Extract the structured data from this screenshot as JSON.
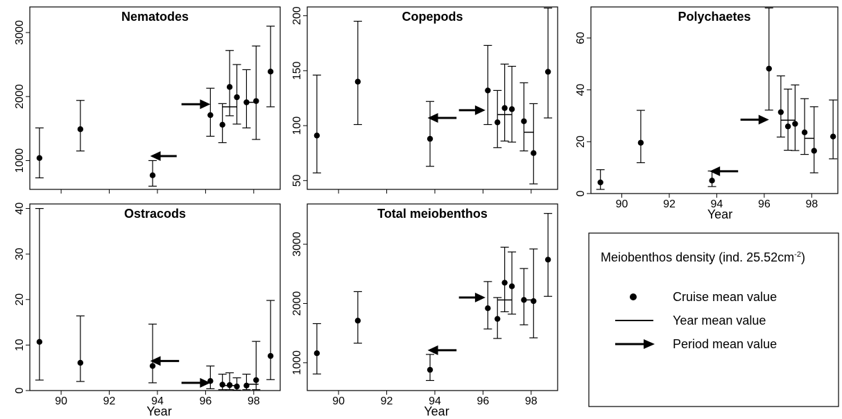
{
  "chart_data": [
    {
      "type": "scatter",
      "title": "Nematodes",
      "xlabel": "",
      "xlim": [
        1988.7,
        1999.1
      ],
      "ylim": [
        550,
        3400
      ],
      "xticks": [
        90,
        92,
        94,
        96,
        98
      ],
      "yticks": [
        1000,
        2000,
        3000
      ],
      "show_xtick_labels": false,
      "cruise_means": [
        {
          "x": 1989.1,
          "y": 1040,
          "low": 730,
          "high": 1510
        },
        {
          "x": 1990.8,
          "y": 1490,
          "low": 1150,
          "high": 1940
        },
        {
          "x": 1993.8,
          "y": 770,
          "low": 600,
          "high": 1000
        },
        {
          "x": 1996.2,
          "y": 1710,
          "low": 1380,
          "high": 2130
        },
        {
          "x": 1996.7,
          "y": 1560,
          "low": 1280,
          "high": 1890
        },
        {
          "x": 1997.0,
          "y": 2150,
          "low": 1700,
          "high": 2720
        },
        {
          "x": 1997.3,
          "y": 1990,
          "low": 1570,
          "high": 2500
        },
        {
          "x": 1997.7,
          "y": 1910,
          "low": 1510,
          "high": 2420
        },
        {
          "x": 1998.1,
          "y": 1930,
          "low": 1330,
          "high": 2790
        },
        {
          "x": 1998.7,
          "y": 2390,
          "low": 1840,
          "high": 3100
        }
      ],
      "year_means": [
        {
          "x0": 1996.7,
          "x1": 1997.3,
          "y": 1840
        },
        {
          "x0": 1997.7,
          "x1": 1998.2,
          "y": 1910
        }
      ],
      "period_means": [
        {
          "tail_x": 1994.8,
          "head_x": 1993.7,
          "y": 1070
        },
        {
          "tail_x": 1995.0,
          "head_x": 1996.2,
          "y": 1880
        }
      ]
    },
    {
      "type": "scatter",
      "title": "Copepods",
      "xlabel": "",
      "xlim": [
        1988.7,
        1999.1
      ],
      "ylim": [
        42,
        208
      ],
      "xticks": [
        90,
        92,
        94,
        96,
        98
      ],
      "yticks": [
        50,
        100,
        150,
        200
      ],
      "show_xtick_labels": false,
      "cruise_means": [
        {
          "x": 1989.1,
          "y": 91,
          "low": 57,
          "high": 146
        },
        {
          "x": 1990.8,
          "y": 140,
          "low": 101,
          "high": 195
        },
        {
          "x": 1993.8,
          "y": 88,
          "low": 63,
          "high": 122
        },
        {
          "x": 1996.2,
          "y": 132,
          "low": 101,
          "high": 173
        },
        {
          "x": 1996.6,
          "y": 103,
          "low": 80,
          "high": 132
        },
        {
          "x": 1996.9,
          "y": 116,
          "low": 86,
          "high": 156
        },
        {
          "x": 1997.2,
          "y": 115,
          "low": 85,
          "high": 154
        },
        {
          "x": 1997.7,
          "y": 104,
          "low": 77,
          "high": 139
        },
        {
          "x": 1998.1,
          "y": 75,
          "low": 47,
          "high": 120
        },
        {
          "x": 1998.7,
          "y": 149,
          "low": 107,
          "high": 207
        }
      ],
      "year_means": [
        {
          "x0": 1996.6,
          "x1": 1997.2,
          "y": 110
        },
        {
          "x0": 1997.7,
          "x1": 1998.1,
          "y": 94
        }
      ],
      "period_means": [
        {
          "tail_x": 1994.9,
          "head_x": 1993.7,
          "y": 107
        },
        {
          "tail_x": 1995.0,
          "head_x": 1996.1,
          "y": 114
        }
      ]
    },
    {
      "type": "scatter",
      "title": "Polychaetes",
      "xlabel": "Year",
      "xlim": [
        1988.7,
        1999.1
      ],
      "ylim": [
        0,
        72
      ],
      "xticks": [
        90,
        92,
        94,
        96,
        98
      ],
      "yticks": [
        0,
        20,
        40,
        60
      ],
      "show_xtick_labels": true,
      "cruise_means": [
        {
          "x": 1989.1,
          "y": 4.3,
          "low": 1.6,
          "high": 9.2
        },
        {
          "x": 1990.8,
          "y": 19.6,
          "low": 11.9,
          "high": 32.1
        },
        {
          "x": 1993.8,
          "y": 5.0,
          "low": 2.7,
          "high": 8.7
        },
        {
          "x": 1996.2,
          "y": 48.2,
          "low": 32.2,
          "high": 71.6
        },
        {
          "x": 1996.7,
          "y": 31.4,
          "low": 21.8,
          "high": 45.4
        },
        {
          "x": 1997.0,
          "y": 25.9,
          "low": 16.7,
          "high": 40.3
        },
        {
          "x": 1997.3,
          "y": 26.9,
          "low": 16.6,
          "high": 41.9
        },
        {
          "x": 1997.7,
          "y": 23.6,
          "low": 15.1,
          "high": 36.6
        },
        {
          "x": 1998.1,
          "y": 16.5,
          "low": 8.0,
          "high": 33.5
        },
        {
          "x": 1998.9,
          "y": 22.0,
          "low": 13.4,
          "high": 36.1
        }
      ],
      "year_means": [
        {
          "x0": 1996.7,
          "x1": 1997.3,
          "y": 28.3
        },
        {
          "x0": 1997.7,
          "x1": 1998.1,
          "y": 21.3
        }
      ],
      "period_means": [
        {
          "tail_x": 1994.9,
          "head_x": 1993.7,
          "y": 8.6
        },
        {
          "tail_x": 1995.0,
          "head_x": 1996.2,
          "y": 28.5
        }
      ]
    },
    {
      "type": "scatter",
      "title": "Ostracods",
      "xlabel": "Year",
      "xlim": [
        1988.7,
        1999.1
      ],
      "ylim": [
        0,
        41
      ],
      "xticks": [
        90,
        92,
        94,
        96,
        98
      ],
      "yticks": [
        0,
        10,
        20,
        30,
        40
      ],
      "show_xtick_labels": true,
      "cruise_means": [
        {
          "x": 1989.1,
          "y": 10.7,
          "low": 2.3,
          "high": 40.0
        },
        {
          "x": 1990.8,
          "y": 6.1,
          "low": 2.0,
          "high": 16.4
        },
        {
          "x": 1993.8,
          "y": 5.4,
          "low": 1.7,
          "high": 14.6
        },
        {
          "x": 1996.2,
          "y": 2.1,
          "low": 0.4,
          "high": 5.4
        },
        {
          "x": 1996.7,
          "y": 1.3,
          "low": 0.2,
          "high": 3.6
        },
        {
          "x": 1997.0,
          "y": 1.2,
          "low": 0.2,
          "high": 3.9
        },
        {
          "x": 1997.3,
          "y": 0.9,
          "low": 0.1,
          "high": 2.8
        },
        {
          "x": 1997.7,
          "y": 1.1,
          "low": 0.2,
          "high": 3.6
        },
        {
          "x": 1998.1,
          "y": 2.3,
          "low": 0.2,
          "high": 10.8
        },
        {
          "x": 1998.7,
          "y": 7.6,
          "low": 2.4,
          "high": 19.8
        }
      ],
      "year_means": [
        {
          "x0": 1996.6,
          "x1": 1997.3,
          "y": 1.1
        },
        {
          "x0": 1997.7,
          "x1": 1998.2,
          "y": 1.4
        }
      ],
      "period_means": [
        {
          "tail_x": 1994.9,
          "head_x": 1993.7,
          "y": 6.5
        },
        {
          "tail_x": 1995.0,
          "head_x": 1996.2,
          "y": 1.7
        }
      ]
    },
    {
      "type": "scatter",
      "title": "Total meiobenthos",
      "xlabel": "Year",
      "xlim": [
        1988.7,
        1999.1
      ],
      "ylim": [
        530,
        3680
      ],
      "xticks": [
        90,
        92,
        94,
        96,
        98
      ],
      "yticks": [
        1000,
        2000,
        3000
      ],
      "show_xtick_labels": true,
      "cruise_means": [
        {
          "x": 1989.1,
          "y": 1160,
          "low": 810,
          "high": 1660
        },
        {
          "x": 1990.8,
          "y": 1710,
          "low": 1330,
          "high": 2200
        },
        {
          "x": 1993.8,
          "y": 880,
          "low": 700,
          "high": 1140
        },
        {
          "x": 1996.2,
          "y": 1920,
          "low": 1570,
          "high": 2370
        },
        {
          "x": 1996.6,
          "y": 1740,
          "low": 1410,
          "high": 2100
        },
        {
          "x": 1996.9,
          "y": 2350,
          "low": 1860,
          "high": 2950
        },
        {
          "x": 1997.2,
          "y": 2290,
          "low": 1820,
          "high": 2870
        },
        {
          "x": 1997.7,
          "y": 2060,
          "low": 1640,
          "high": 2590
        },
        {
          "x": 1998.1,
          "y": 2040,
          "low": 1420,
          "high": 2920
        },
        {
          "x": 1998.7,
          "y": 2740,
          "low": 2120,
          "high": 3520
        }
      ],
      "year_means": [
        {
          "x0": 1996.6,
          "x1": 1997.2,
          "y": 2060
        },
        {
          "x0": 1997.7,
          "x1": 1998.1,
          "y": 2060
        }
      ],
      "period_means": [
        {
          "tail_x": 1994.9,
          "head_x": 1993.7,
          "y": 1210
        },
        {
          "tail_x": 1995.0,
          "head_x": 1996.1,
          "y": 2100
        }
      ]
    }
  ],
  "legend": {
    "title_text": "Meiobenthos density (ind. 25.52cm",
    "title_superscript": "-2",
    "title_close": ")",
    "cruise": "Cruise mean value",
    "year": "Year mean value",
    "period": "Period mean value"
  }
}
